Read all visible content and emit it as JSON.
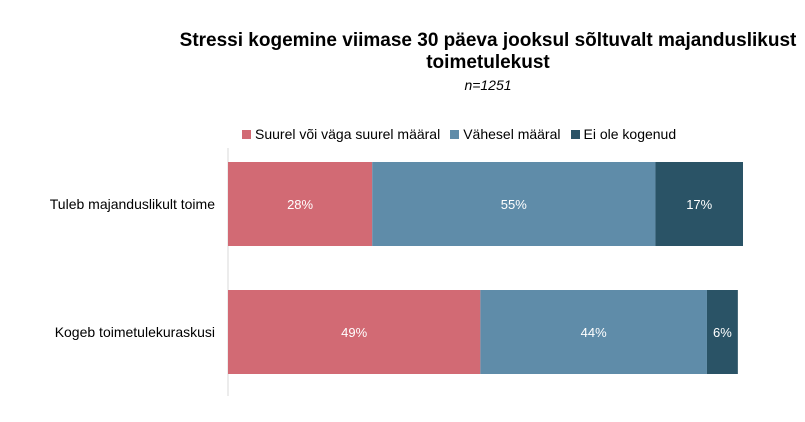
{
  "chart_data": {
    "type": "bar",
    "orientation": "horizontal",
    "stacked": true,
    "percent_stacked": true,
    "title": "Stressi kogemine viimase 30 päeva jooksul sõltuvalt majanduslikust toimetulekust",
    "subtitle": "n=1251",
    "categories": [
      "Tuleb majanduslikult toime",
      "Kogeb toimetulekuraskusi"
    ],
    "series": [
      {
        "name": "Suurel või väga suurel määral",
        "values": [
          28,
          49
        ],
        "labels": [
          "28%",
          "49%"
        ],
        "color": "#d26a74"
      },
      {
        "name": "Vähesel määral",
        "values": [
          55,
          44
        ],
        "labels": [
          "55%",
          "44%"
        ],
        "color": "#5f8ca9"
      },
      {
        "name": "Ei ole kogenud",
        "values": [
          17,
          6
        ],
        "labels": [
          "17%",
          "6%"
        ],
        "color": "#2a5366"
      }
    ],
    "xlim": [
      0,
      100
    ],
    "legend_position": "top",
    "grid": false
  }
}
